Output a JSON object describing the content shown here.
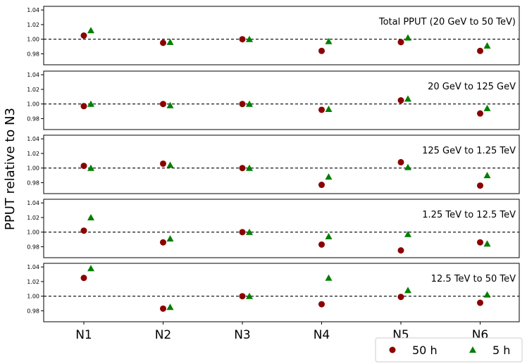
{
  "chart_data": {
    "type": "scatter",
    "categories": [
      "N1",
      "N2",
      "N3",
      "N4",
      "N5",
      "N6"
    ],
    "ylabel": "PPUT relative to N3",
    "ylim": [
      0.965,
      1.045
    ],
    "yticks": [
      "0.98",
      "1.00",
      "1.02",
      "1.04"
    ],
    "reference_line": 1.0,
    "legend_position": "bottom-right",
    "legend": [
      {
        "label": "50 h",
        "marker": "circle",
        "color": "#8b0000"
      },
      {
        "label": "5 h",
        "marker": "triangle",
        "color": "#007f00"
      }
    ],
    "panels": [
      {
        "label": "Total PPUT (20 GeV to 50 TeV)",
        "series": [
          {
            "name": "50 h",
            "values": [
              1.005,
              0.995,
              1.0,
              0.984,
              0.996,
              0.984
            ]
          },
          {
            "name": "5 h",
            "values": [
              1.012,
              0.996,
              1.0,
              0.997,
              1.002,
              0.991
            ]
          }
        ]
      },
      {
        "label": "20 GeV to 125 GeV",
        "series": [
          {
            "name": "50 h",
            "values": [
              0.997,
              1.0,
              1.0,
              0.992,
              1.005,
              0.987
            ]
          },
          {
            "name": "5 h",
            "values": [
              1.0,
              0.998,
              1.0,
              0.993,
              1.007,
              0.994
            ]
          }
        ]
      },
      {
        "label": "125 GeV to 1.25 TeV",
        "series": [
          {
            "name": "50 h",
            "values": [
              1.003,
              1.006,
              1.0,
              0.977,
              1.008,
              0.976
            ]
          },
          {
            "name": "5 h",
            "values": [
              1.0,
              1.004,
              1.0,
              0.988,
              1.001,
              0.99
            ]
          }
        ]
      },
      {
        "label": "1.25 TeV to 12.5 TeV",
        "series": [
          {
            "name": "50 h",
            "values": [
              1.002,
              0.986,
              1.0,
              0.983,
              0.975,
              0.986
            ]
          },
          {
            "name": "5 h",
            "values": [
              1.02,
              0.991,
              1.0,
              0.994,
              0.997,
              0.984
            ]
          }
        ]
      },
      {
        "label": "12.5 TeV to 50 TeV",
        "series": [
          {
            "name": "50 h",
            "values": [
              1.025,
              0.983,
              1.0,
              0.989,
              0.999,
              0.991
            ]
          },
          {
            "name": "5 h",
            "values": [
              1.038,
              0.985,
              1.0,
              1.025,
              1.008,
              1.002
            ]
          }
        ]
      }
    ]
  }
}
